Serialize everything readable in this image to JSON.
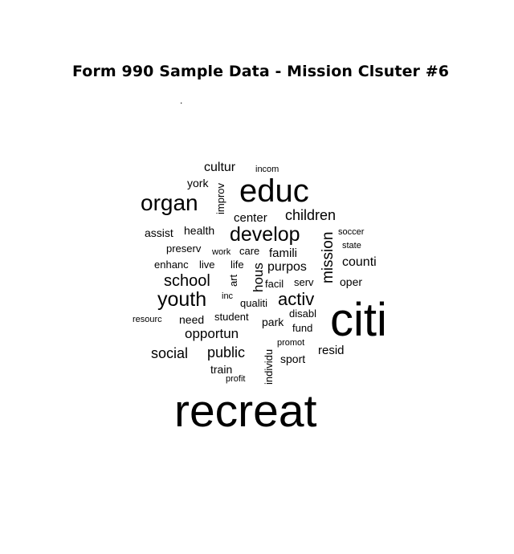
{
  "title": "Form 990 Sample Data - Mission Clsuter #6",
  "subtitle_mark": ".",
  "words": [
    {
      "id": "recreat",
      "text": "recreat"
    },
    {
      "id": "citi",
      "text": "citi"
    },
    {
      "id": "educ",
      "text": "educ"
    },
    {
      "id": "organ",
      "text": "organ"
    },
    {
      "id": "develop",
      "text": "develop"
    },
    {
      "id": "youth",
      "text": "youth"
    },
    {
      "id": "activ",
      "text": "activ"
    },
    {
      "id": "children",
      "text": "children"
    },
    {
      "id": "school",
      "text": "school"
    },
    {
      "id": "public",
      "text": "public"
    },
    {
      "id": "social",
      "text": "social"
    },
    {
      "id": "opportun",
      "text": "opportun"
    },
    {
      "id": "mission",
      "text": "mission"
    },
    {
      "id": "cultur",
      "text": "cultur"
    },
    {
      "id": "counti",
      "text": "counti"
    },
    {
      "id": "purpos",
      "text": "purpos"
    },
    {
      "id": "famili",
      "text": "famili"
    },
    {
      "id": "hous",
      "text": "hous"
    },
    {
      "id": "resid",
      "text": "resid"
    },
    {
      "id": "center",
      "text": "center"
    },
    {
      "id": "health",
      "text": "health"
    },
    {
      "id": "assist",
      "text": "assist"
    },
    {
      "id": "york",
      "text": "york"
    },
    {
      "id": "improv",
      "text": "improv"
    },
    {
      "id": "oper",
      "text": "oper"
    },
    {
      "id": "sport",
      "text": "sport"
    },
    {
      "id": "fund",
      "text": "fund"
    },
    {
      "id": "park",
      "text": "park"
    },
    {
      "id": "student",
      "text": "student"
    },
    {
      "id": "need",
      "text": "need"
    },
    {
      "id": "train",
      "text": "train"
    },
    {
      "id": "qualiti",
      "text": "qualiti"
    },
    {
      "id": "facil",
      "text": "facil"
    },
    {
      "id": "serv",
      "text": "serv"
    },
    {
      "id": "disabl",
      "text": "disabl"
    },
    {
      "id": "preserv",
      "text": "preserv"
    },
    {
      "id": "enhanc",
      "text": "enhanc"
    },
    {
      "id": "live",
      "text": "live"
    },
    {
      "id": "life",
      "text": "life"
    },
    {
      "id": "care",
      "text": "care"
    },
    {
      "id": "individu",
      "text": "individu"
    },
    {
      "id": "incom",
      "text": "incom"
    },
    {
      "id": "soccer",
      "text": "soccer"
    },
    {
      "id": "state",
      "text": "state"
    },
    {
      "id": "work",
      "text": "work"
    },
    {
      "id": "art",
      "text": "art"
    },
    {
      "id": "inc",
      "text": "inc"
    },
    {
      "id": "resourc",
      "text": "resourc"
    },
    {
      "id": "promot",
      "text": "promot"
    },
    {
      "id": "profit",
      "text": "profit"
    }
  ]
}
